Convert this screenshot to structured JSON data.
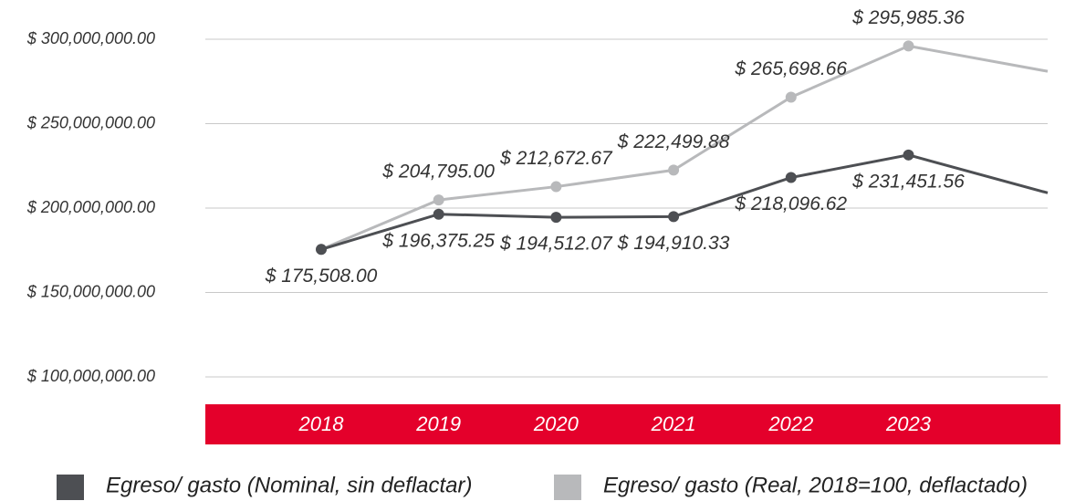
{
  "chart_data": {
    "type": "line",
    "categories": [
      "2018",
      "2019",
      "2020",
      "2021",
      "2022",
      "2023",
      null
    ],
    "series": [
      {
        "name": "Egreso/ gasto (Nominal, sin deflactar)",
        "color": "#4d4f53",
        "values": [
          175508000,
          196375250,
          194512070,
          194910330,
          218096620,
          231451560,
          209000000
        ],
        "value_labels": [
          "$ 175,508.00",
          "$ 196,375.25",
          "$ 194,512.07",
          "$ 194,910.33",
          "$ 218,096.62",
          "$ 231,451.56",
          null
        ]
      },
      {
        "name": "Egreso/ gasto (Real, 2018=100, deflactado)",
        "color": "#b8b9bb",
        "values": [
          175508000,
          204795000,
          212672670,
          222499880,
          265698660,
          295985360,
          281000000
        ],
        "value_labels": [
          null,
          "$ 204,795.00",
          "$ 212,672.67",
          "$ 222,499.88",
          "$ 265,698.66",
          "$ 295,985.36",
          null
        ]
      }
    ],
    "ylim": [
      100000000,
      300000000
    ],
    "yticks": [
      {
        "value": 100000000,
        "label": "$ 100,000,000.00"
      },
      {
        "value": 150000000,
        "label": "$ 150,000,000.00"
      },
      {
        "value": 200000000,
        "label": "$ 200,000,000.00"
      },
      {
        "value": 250000000,
        "label": "$ 250,000,000.00"
      },
      {
        "value": 300000000,
        "label": "$ 300,000,000.00"
      }
    ],
    "grid": true,
    "legend": "bottom",
    "axis_band_color": "#e4002b"
  }
}
